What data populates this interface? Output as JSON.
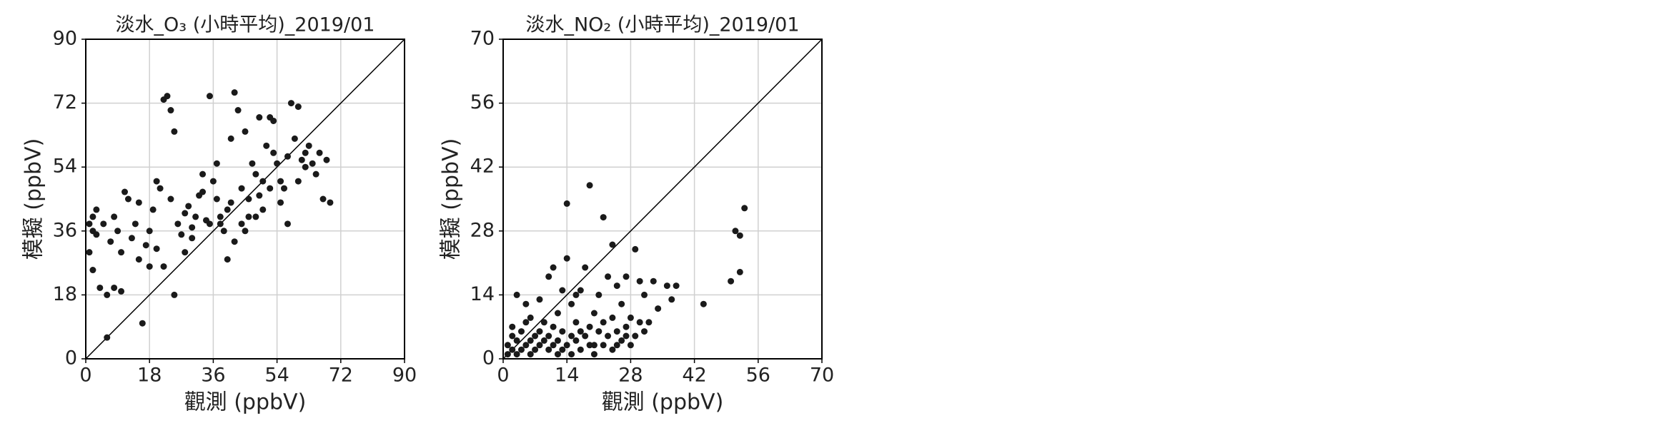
{
  "chart_data": [
    {
      "type": "scatter",
      "title": "淡水_O₃ (小時平均)_2019/01",
      "x_label": "觀測 (ppbV)",
      "y_label": "模擬 (ppbV)",
      "x": [
        1,
        2,
        1,
        3,
        2,
        4,
        6,
        5,
        7,
        8,
        9,
        10,
        11,
        12,
        13,
        14,
        15,
        16,
        17,
        18,
        19,
        20,
        21,
        22,
        23,
        24,
        25,
        24,
        26,
        27,
        28,
        29,
        30,
        31,
        32,
        33,
        34,
        35,
        36,
        37,
        38,
        39,
        40,
        41,
        42,
        43,
        44,
        45,
        46,
        47,
        48,
        49,
        50,
        51,
        52,
        53,
        54,
        55,
        56,
        57,
        58,
        59,
        60,
        61,
        62,
        63,
        64,
        65,
        66,
        67,
        68,
        69,
        6,
        22,
        25,
        30,
        35,
        38,
        40,
        42,
        44,
        46,
        48,
        50,
        52,
        55,
        57,
        60,
        62,
        33,
        37,
        41,
        45,
        49,
        53,
        3,
        2,
        8,
        10,
        15,
        18,
        20,
        28
      ],
      "y": [
        38,
        40,
        30,
        35,
        25,
        20,
        18,
        38,
        33,
        40,
        36,
        30,
        47,
        45,
        34,
        38,
        44,
        10,
        32,
        36,
        42,
        50,
        48,
        73,
        74,
        70,
        64,
        45,
        38,
        35,
        41,
        43,
        37,
        40,
        46,
        52,
        39,
        74,
        50,
        45,
        38,
        36,
        42,
        44,
        75,
        70,
        48,
        36,
        40,
        55,
        52,
        46,
        42,
        60,
        68,
        58,
        55,
        50,
        48,
        57,
        72,
        62,
        71,
        56,
        58,
        60,
        55,
        52,
        58,
        45,
        56,
        44,
        6,
        26,
        18,
        34,
        38,
        40,
        28,
        33,
        38,
        45,
        40,
        50,
        48,
        44,
        38,
        50,
        54,
        47,
        55,
        62,
        64,
        68,
        67,
        42,
        36,
        20,
        19,
        28,
        26,
        31,
        30
      ],
      "xlim": [
        0,
        90
      ],
      "ylim": [
        0,
        90
      ],
      "xticks": [
        0,
        18,
        36,
        54,
        72,
        90
      ],
      "yticks": [
        0,
        18,
        36,
        54,
        72,
        90
      ],
      "grid": true,
      "diagonal": true,
      "color": "#1a1a1a"
    },
    {
      "type": "scatter",
      "title": "淡水_NO₂ (小時平均)_2019/01",
      "x_label": "觀測 (ppbV)",
      "y_label": "模擬 (ppbV)",
      "x": [
        1,
        2,
        2,
        3,
        3,
        4,
        4,
        5,
        5,
        6,
        6,
        7,
        7,
        8,
        8,
        9,
        9,
        10,
        10,
        11,
        11,
        12,
        12,
        13,
        13,
        14,
        14,
        15,
        15,
        16,
        16,
        17,
        17,
        18,
        18,
        19,
        19,
        20,
        20,
        21,
        21,
        22,
        22,
        23,
        23,
        24,
        24,
        25,
        25,
        26,
        26,
        27,
        27,
        28,
        28,
        29,
        29,
        30,
        30,
        31,
        31,
        32,
        33,
        34,
        36,
        37,
        38,
        44,
        50,
        51,
        52,
        52,
        53,
        14,
        10,
        8,
        6,
        5,
        3,
        2,
        1,
        12,
        15,
        20,
        25,
        27,
        24,
        22,
        19,
        17,
        16,
        13,
        11
      ],
      "y": [
        3,
        2,
        5,
        4,
        1,
        6,
        2,
        3,
        8,
        4,
        1,
        5,
        2,
        6,
        3,
        4,
        8,
        5,
        2,
        3,
        7,
        4,
        10,
        6,
        2,
        3,
        22,
        5,
        12,
        4,
        8,
        6,
        15,
        20,
        5,
        38,
        7,
        3,
        10,
        6,
        14,
        31,
        8,
        5,
        18,
        25,
        9,
        6,
        16,
        4,
        12,
        7,
        18,
        3,
        9,
        24,
        5,
        17,
        8,
        6,
        14,
        8,
        17,
        11,
        16,
        13,
        16,
        12,
        17,
        28,
        19,
        27,
        33,
        34,
        18,
        13,
        9,
        12,
        14,
        7,
        1,
        1,
        1,
        1,
        3,
        5,
        2,
        3,
        3,
        2,
        14,
        15,
        20
      ],
      "xlim": [
        0,
        70
      ],
      "ylim": [
        0,
        70
      ],
      "xticks": [
        0,
        14,
        28,
        42,
        56,
        70
      ],
      "yticks": [
        0,
        14,
        28,
        42,
        56,
        70
      ],
      "grid": true,
      "diagonal": true,
      "color": "#1a1a1a"
    }
  ]
}
